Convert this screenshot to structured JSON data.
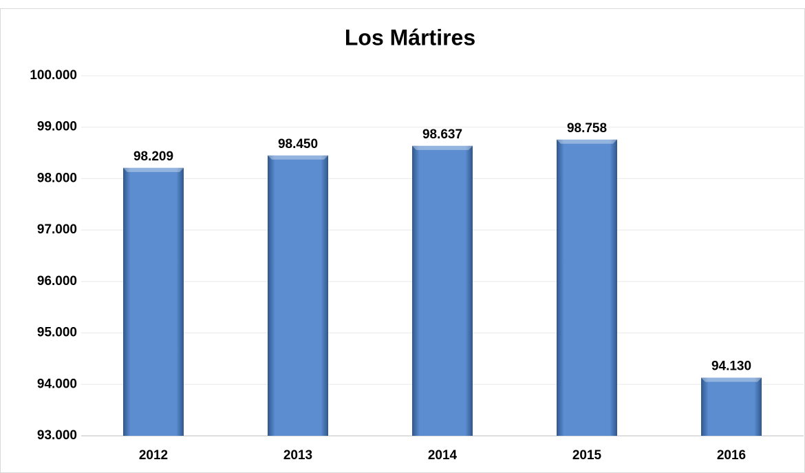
{
  "chart_data": {
    "type": "bar",
    "title": "Los Mártires",
    "categories": [
      "2012",
      "2013",
      "2014",
      "2015",
      "2016"
    ],
    "values": [
      98209,
      98450,
      98637,
      98758,
      94130
    ],
    "value_labels": [
      "98.209",
      "98.450",
      "98.637",
      "98.758",
      "94.130"
    ],
    "color": "#5b8dd0",
    "ylim": [
      93000,
      100000
    ],
    "yticks": [
      {
        "value": 93000,
        "label": "93.000"
      },
      {
        "value": 94000,
        "label": "94.000"
      },
      {
        "value": 95000,
        "label": "95.000"
      },
      {
        "value": 96000,
        "label": "96.000"
      },
      {
        "value": 97000,
        "label": "97.000"
      },
      {
        "value": 98000,
        "label": "98.000"
      },
      {
        "value": 99000,
        "label": "99.000"
      },
      {
        "value": 100000,
        "label": "100.000"
      }
    ],
    "grid": true
  }
}
